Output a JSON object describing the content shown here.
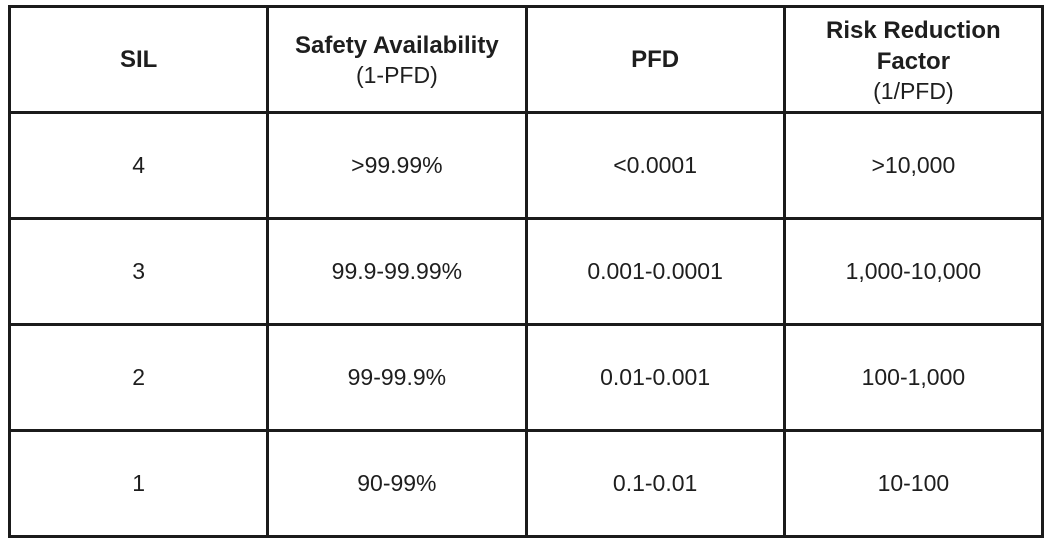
{
  "table": {
    "header": [
      {
        "title": "SIL"
      },
      {
        "title": "Safety Availability",
        "subtitle": "(1-PFD)"
      },
      {
        "title": "PFD"
      },
      {
        "title": "Risk Reduction Factor",
        "subtitle": "(1/PFD)"
      }
    ],
    "rows": [
      [
        "4",
        ">99.99%",
        "<0.0001",
        ">10,000"
      ],
      [
        "3",
        "99.9-99.99%",
        "0.001-0.0001",
        "1,000-10,000"
      ],
      [
        "2",
        "99-99.9%",
        "0.01-0.001",
        "100-1,000"
      ],
      [
        "1",
        "90-99%",
        "0.1-0.01",
        "10-100"
      ]
    ]
  }
}
